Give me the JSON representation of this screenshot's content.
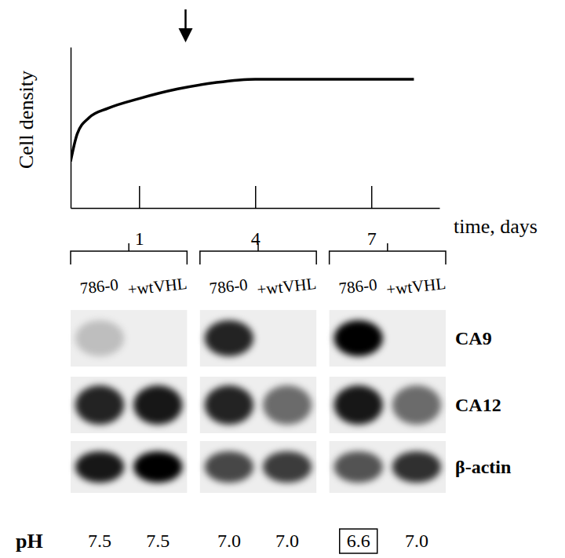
{
  "chart_data": [
    {
      "type": "line",
      "x_label": "time, days",
      "y_label": "Cell density",
      "x": [
        -0.77,
        -0.6,
        -0.3,
        0.2,
        1,
        2,
        3,
        4,
        5,
        6,
        7,
        8.1
      ],
      "values": [
        0.29,
        0.46,
        0.56,
        0.62,
        0.68,
        0.74,
        0.78,
        0.8,
        0.8,
        0.8,
        0.8,
        0.8
      ],
      "color": "#000000",
      "xlim": [
        -0.77,
        8.76
      ],
      "ylim": [
        0,
        1
      ],
      "xticks": [
        1,
        4,
        7
      ],
      "tick_labels": "x",
      "arrow_x": 2.2
    },
    {
      "type": "blot",
      "categories": [
        "786-0",
        "+wtVHL",
        "786-0",
        "+wtVHL",
        "786-0",
        "+wtVHL"
      ],
      "series": [
        {
          "name": "CA9",
          "values": [
            0.2,
            0,
            0.85,
            0,
            1.0,
            0
          ]
        },
        {
          "name": "CA12",
          "values": [
            0.85,
            0.9,
            0.85,
            0.55,
            0.9,
            0.55
          ]
        },
        {
          "name": "β-actin",
          "values": [
            0.9,
            1.0,
            0.7,
            0.75,
            0.65,
            0.8
          ]
        }
      ],
      "color": "#000000",
      "ph": {
        "name": "pH",
        "values": [
          7.5,
          7.5,
          7,
          7,
          6.6,
          7
        ],
        "value_labels": [
          "7.5",
          "7.5",
          "7.0",
          "7.0",
          "6.6",
          "7.0"
        ],
        "boxed": 4
      }
    }
  ]
}
